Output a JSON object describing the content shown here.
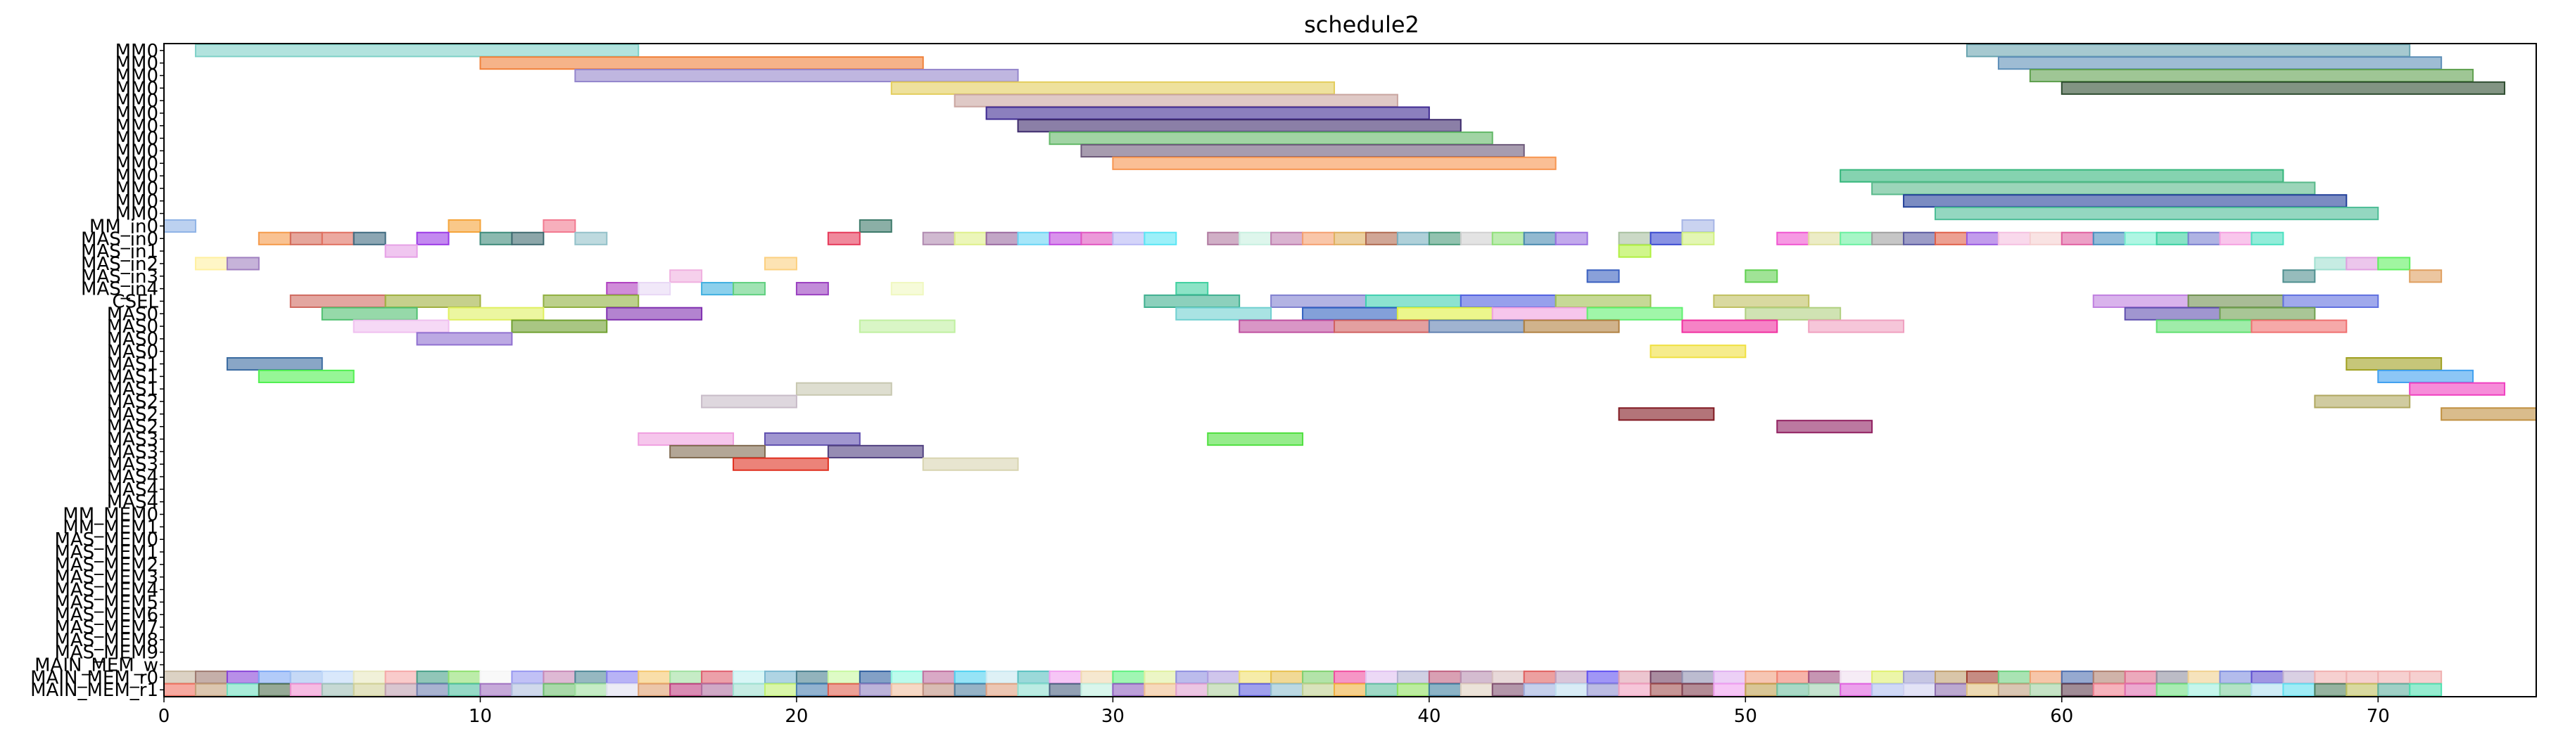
{
  "chart_data": {
    "type": "gantt",
    "title": "schedule2",
    "xlim": [
      0,
      75
    ],
    "x_ticks": [
      0,
      10,
      20,
      30,
      40,
      50,
      60,
      70
    ],
    "rows": [
      "MM0",
      "MM0",
      "MM0",
      "MM0",
      "MM0",
      "MM0",
      "MM0",
      "MM0",
      "MM0",
      "MM0",
      "MM0",
      "MM0",
      "MM0",
      "MM0",
      "MM_in0",
      "MAS_in0",
      "MAS_in1",
      "MAS_in2",
      "MAS_in3",
      "MAS_in4",
      "CSEL",
      "MAS0",
      "MAS0",
      "MAS0",
      "MAS0",
      "MAS1",
      "MAS1",
      "MAS1",
      "MAS2",
      "MAS2",
      "MAS2",
      "MAS3",
      "MAS3",
      "MAS3",
      "MAS4",
      "MAS4",
      "MAS4",
      "MM_MEM0",
      "MM_MEM1",
      "MAS_MEM0",
      "MAS_MEM1",
      "MAS_MEM2",
      "MAS_MEM3",
      "MAS_MEM4",
      "MAS_MEM5",
      "MAS_MEM6",
      "MAS_MEM7",
      "MAS_MEM8",
      "MAS_MEM9",
      "MAIN_MEM_w",
      "MAIN_MEM_r0",
      "MAIN_MEM_r1"
    ],
    "palette": [
      "#7fcfc6",
      "#f28a3c",
      "#8e80c9",
      "#e6cf5e",
      "#c9a6a0",
      "#3b2a8a",
      "#3e2a6e",
      "#6b5b7b",
      "#5fb66b",
      "#6b4f6b",
      "#f7954f",
      "#2fb57a",
      "#52b889",
      "#1f3f9a",
      "#6fa8dc",
      "#e06666",
      "#93c47d",
      "#c27ba0",
      "#b4a7d6",
      "#76a5af",
      "#ffd966",
      "#8e7cc3",
      "#a64d79",
      "#45818e",
      "#d9d2e9",
      "#f9cb9c",
      "#b6d7a8",
      "#ea9999",
      "#a2c4c9",
      "#ffe599"
    ],
    "bars": [
      {
        "row": 0,
        "start": 1,
        "end": 15,
        "color": "#7fd1c8"
      },
      {
        "row": 0,
        "start": 57,
        "end": 71,
        "color": "#6aa5b0"
      },
      {
        "row": 1,
        "start": 10,
        "end": 24,
        "color": "#f0813a"
      },
      {
        "row": 1,
        "start": 58,
        "end": 72,
        "color": "#5e8fb8"
      },
      {
        "row": 2,
        "start": 13,
        "end": 27,
        "color": "#9486cc"
      },
      {
        "row": 2,
        "start": 59,
        "end": 73,
        "color": "#5fa04e"
      },
      {
        "row": 3,
        "start": 23,
        "end": 37,
        "color": "#e3cd5c"
      },
      {
        "row": 3,
        "start": 60,
        "end": 74,
        "color": "#2e4d30"
      },
      {
        "row": 4,
        "start": 25,
        "end": 39,
        "color": "#c9a5a0"
      },
      {
        "row": 5,
        "start": 26,
        "end": 40,
        "color": "#3e2a92"
      },
      {
        "row": 6,
        "start": 27,
        "end": 41,
        "color": "#3d2a6c"
      },
      {
        "row": 7,
        "start": 28,
        "end": 42,
        "color": "#62b867"
      },
      {
        "row": 8,
        "start": 29,
        "end": 43,
        "color": "#6d5a7a"
      },
      {
        "row": 9,
        "start": 30,
        "end": 44,
        "color": "#f7954f"
      },
      {
        "row": 10,
        "start": 53,
        "end": 67,
        "color": "#34b67b"
      },
      {
        "row": 11,
        "start": 54,
        "end": 68,
        "color": "#58b98a"
      },
      {
        "row": 12,
        "start": 55,
        "end": 69,
        "color": "#23409a"
      },
      {
        "row": 13,
        "start": 56,
        "end": 70,
        "color": "#4dbd96"
      },
      {
        "row": 14,
        "start": 0,
        "end": 1,
        "color": "#8fb3e6"
      },
      {
        "row": 14,
        "start": 9,
        "end": 10,
        "color": "#f5a43a"
      },
      {
        "row": 14,
        "start": 12,
        "end": 13,
        "color": "#f27a90"
      },
      {
        "row": 14,
        "start": 22,
        "end": 23,
        "color": "#3d7a6a"
      },
      {
        "row": 14,
        "start": 48,
        "end": 49,
        "color": "#a6b5e6"
      },
      {
        "row": 15,
        "start": 3,
        "end": 4,
        "color": "#f59a4a"
      },
      {
        "row": 15,
        "start": 4,
        "end": 5,
        "color": "#d46a5a"
      },
      {
        "row": 15,
        "start": 5,
        "end": 6,
        "color": "#e07060"
      },
      {
        "row": 15,
        "start": 6,
        "end": 7,
        "color": "#3f6a80"
      },
      {
        "row": 15,
        "start": 8,
        "end": 9,
        "color": "#9b3ae6"
      },
      {
        "row": 15,
        "start": 10,
        "end": 11,
        "color": "#3d8a7a"
      },
      {
        "row": 15,
        "start": 11,
        "end": 12,
        "color": "#3f6a70"
      },
      {
        "row": 15,
        "start": 13,
        "end": 14,
        "color": "#93c1c9"
      },
      {
        "row": 15,
        "start": 21,
        "end": 22,
        "color": "#e63a5a"
      },
      {
        "row": 15,
        "start": 24,
        "end": 25,
        "color": "#b08ab0"
      },
      {
        "row": 15,
        "start": 25,
        "end": 26,
        "color": "#dff08a"
      },
      {
        "row": 15,
        "start": 26,
        "end": 27,
        "color": "#9a6aa0"
      },
      {
        "row": 15,
        "start": 27,
        "end": 28,
        "color": "#6ad5f5"
      },
      {
        "row": 15,
        "start": 28,
        "end": 29,
        "color": "#c04ae0"
      },
      {
        "row": 15,
        "start": 29,
        "end": 30,
        "color": "#e055c0"
      },
      {
        "row": 15,
        "start": 30,
        "end": 31,
        "color": "#b8b8f5"
      },
      {
        "row": 15,
        "start": 31,
        "end": 32,
        "color": "#5ae6f5"
      },
      {
        "row": 15,
        "start": 33,
        "end": 34,
        "color": "#b07aa0"
      },
      {
        "row": 15,
        "start": 34,
        "end": 35,
        "color": "#c8f0e0"
      },
      {
        "row": 15,
        "start": 35,
        "end": 36,
        "color": "#c080b0"
      },
      {
        "row": 15,
        "start": 36,
        "end": 37,
        "color": "#f5a070"
      },
      {
        "row": 15,
        "start": 37,
        "end": 38,
        "color": "#e0b060"
      },
      {
        "row": 15,
        "start": 38,
        "end": 39,
        "color": "#b06a50"
      },
      {
        "row": 15,
        "start": 39,
        "end": 40,
        "color": "#7ab0c0"
      },
      {
        "row": 15,
        "start": 40,
        "end": 41,
        "color": "#4a9a7a"
      },
      {
        "row": 15,
        "start": 41,
        "end": 42,
        "color": "#d0d0d0"
      },
      {
        "row": 15,
        "start": 42,
        "end": 43,
        "color": "#90e07a"
      },
      {
        "row": 15,
        "start": 43,
        "end": 44,
        "color": "#4a8ab0"
      },
      {
        "row": 15,
        "start": 44,
        "end": 45,
        "color": "#9a70e0"
      },
      {
        "row": 15,
        "start": 46,
        "end": 47,
        "color": "#a8c0a0"
      },
      {
        "row": 15,
        "start": 47,
        "end": 48,
        "color": "#3a4ad0"
      },
      {
        "row": 15,
        "start": 48,
        "end": 49,
        "color": "#d0f080"
      },
      {
        "row": 15,
        "start": 51,
        "end": 52,
        "color": "#f055d0"
      },
      {
        "row": 15,
        "start": 52,
        "end": 53,
        "color": "#e0e0a0"
      },
      {
        "row": 15,
        "start": 53,
        "end": 54,
        "color": "#6af0a0"
      },
      {
        "row": 15,
        "start": 54,
        "end": 55,
        "color": "#a0a0a0"
      },
      {
        "row": 15,
        "start": 55,
        "end": 56,
        "color": "#5a5aa0"
      },
      {
        "row": 15,
        "start": 56,
        "end": 57,
        "color": "#e0604a"
      },
      {
        "row": 15,
        "start": 57,
        "end": 58,
        "color": "#9a5ae0"
      },
      {
        "row": 15,
        "start": 58,
        "end": 59,
        "color": "#f5c0e0"
      },
      {
        "row": 15,
        "start": 59,
        "end": 60,
        "color": "#f5d0d0"
      },
      {
        "row": 15,
        "start": 60,
        "end": 61,
        "color": "#e060a0"
      },
      {
        "row": 15,
        "start": 61,
        "end": 62,
        "color": "#4a90c0"
      },
      {
        "row": 15,
        "start": 62,
        "end": 63,
        "color": "#7af0d0"
      },
      {
        "row": 15,
        "start": 63,
        "end": 64,
        "color": "#3ad0a0"
      },
      {
        "row": 15,
        "start": 64,
        "end": 65,
        "color": "#7a80d0"
      },
      {
        "row": 15,
        "start": 65,
        "end": 66,
        "color": "#f5a0e0"
      },
      {
        "row": 15,
        "start": 66,
        "end": 67,
        "color": "#4ae0c0"
      },
      {
        "row": 16,
        "start": 7,
        "end": 8,
        "color": "#e6a0e6"
      },
      {
        "row": 16,
        "start": 46,
        "end": 47,
        "color": "#b0f040"
      },
      {
        "row": 17,
        "start": 1,
        "end": 2,
        "color": "#fff0a0"
      },
      {
        "row": 17,
        "start": 2,
        "end": 3,
        "color": "#a080c0"
      },
      {
        "row": 17,
        "start": 19,
        "end": 20,
        "color": "#fcd080"
      },
      {
        "row": 17,
        "start": 68,
        "end": 69,
        "color": "#a0e0d0"
      },
      {
        "row": 17,
        "start": 69,
        "end": 70,
        "color": "#e0a0e0"
      },
      {
        "row": 17,
        "start": 70,
        "end": 71,
        "color": "#60f060"
      },
      {
        "row": 18,
        "start": 16,
        "end": 17,
        "color": "#f0b0e0"
      },
      {
        "row": 18,
        "start": 45,
        "end": 46,
        "color": "#3a60c0"
      },
      {
        "row": 18,
        "start": 50,
        "end": 51,
        "color": "#60d050"
      },
      {
        "row": 18,
        "start": 67,
        "end": 68,
        "color": "#509090"
      },
      {
        "row": 18,
        "start": 71,
        "end": 72,
        "color": "#e0a060"
      },
      {
        "row": 19,
        "start": 14,
        "end": 15,
        "color": "#b040c0"
      },
      {
        "row": 19,
        "start": 15,
        "end": 16,
        "color": "#e8d8f5"
      },
      {
        "row": 19,
        "start": 17,
        "end": 18,
        "color": "#40b0e0"
      },
      {
        "row": 19,
        "start": 18,
        "end": 19,
        "color": "#60d080"
      },
      {
        "row": 19,
        "start": 20,
        "end": 21,
        "color": "#9a40c0"
      },
      {
        "row": 19,
        "start": 23,
        "end": 24,
        "color": "#f0f8c0"
      },
      {
        "row": 19,
        "start": 32,
        "end": 33,
        "color": "#40d0a0"
      },
      {
        "row": 20,
        "start": 4,
        "end": 7,
        "color": "#d06a60"
      },
      {
        "row": 20,
        "start": 7,
        "end": 10,
        "color": "#a0b040"
      },
      {
        "row": 20,
        "start": 12,
        "end": 15,
        "color": "#90b040"
      },
      {
        "row": 20,
        "start": 31,
        "end": 34,
        "color": "#40b090"
      },
      {
        "row": 20,
        "start": 35,
        "end": 38,
        "color": "#8080d0"
      },
      {
        "row": 20,
        "start": 38,
        "end": 41,
        "color": "#40d0b0"
      },
      {
        "row": 20,
        "start": 41,
        "end": 44,
        "color": "#5060e0"
      },
      {
        "row": 20,
        "start": 44,
        "end": 47,
        "color": "#a0c050"
      },
      {
        "row": 20,
        "start": 49,
        "end": 52,
        "color": "#c0c060"
      },
      {
        "row": 20,
        "start": 61,
        "end": 64,
        "color": "#c080e0"
      },
      {
        "row": 20,
        "start": 64,
        "end": 67,
        "color": "#709050"
      },
      {
        "row": 20,
        "start": 67,
        "end": 70,
        "color": "#6070e0"
      },
      {
        "row": 21,
        "start": 5,
        "end": 8,
        "color": "#50c070"
      },
      {
        "row": 21,
        "start": 9,
        "end": 12,
        "color": "#e0f060"
      },
      {
        "row": 21,
        "start": 14,
        "end": 17,
        "color": "#8030b0"
      },
      {
        "row": 21,
        "start": 32,
        "end": 35,
        "color": "#70d0d0"
      },
      {
        "row": 21,
        "start": 36,
        "end": 39,
        "color": "#3060c0"
      },
      {
        "row": 21,
        "start": 39,
        "end": 42,
        "color": "#e0f040"
      },
      {
        "row": 21,
        "start": 42,
        "end": 45,
        "color": "#f0a0e0"
      },
      {
        "row": 21,
        "start": 45,
        "end": 48,
        "color": "#60f070"
      },
      {
        "row": 21,
        "start": 50,
        "end": 53,
        "color": "#b0d080"
      },
      {
        "row": 21,
        "start": 62,
        "end": 65,
        "color": "#6050b0"
      },
      {
        "row": 21,
        "start": 65,
        "end": 68,
        "color": "#70a050"
      },
      {
        "row": 22,
        "start": 6,
        "end": 9,
        "color": "#f0c0f0"
      },
      {
        "row": 22,
        "start": 11,
        "end": 14,
        "color": "#70a030"
      },
      {
        "row": 22,
        "start": 22,
        "end": 25,
        "color": "#c0f0a0"
      },
      {
        "row": 22,
        "start": 34,
        "end": 37,
        "color": "#c050a0"
      },
      {
        "row": 22,
        "start": 37,
        "end": 40,
        "color": "#d06060"
      },
      {
        "row": 22,
        "start": 40,
        "end": 43,
        "color": "#6080b0"
      },
      {
        "row": 22,
        "start": 43,
        "end": 46,
        "color": "#b08040"
      },
      {
        "row": 22,
        "start": 48,
        "end": 51,
        "color": "#f030a0"
      },
      {
        "row": 22,
        "start": 52,
        "end": 55,
        "color": "#f0a0c0"
      },
      {
        "row": 22,
        "start": 63,
        "end": 66,
        "color": "#60e070"
      },
      {
        "row": 22,
        "start": 66,
        "end": 69,
        "color": "#f07070"
      },
      {
        "row": 23,
        "start": 8,
        "end": 11,
        "color": "#9070d0"
      },
      {
        "row": 24,
        "start": 47,
        "end": 50,
        "color": "#f0e040"
      },
      {
        "row": 25,
        "start": 2,
        "end": 5,
        "color": "#3a6aa0"
      },
      {
        "row": 25,
        "start": 69,
        "end": 72,
        "color": "#a0a020"
      },
      {
        "row": 26,
        "start": 3,
        "end": 6,
        "color": "#50f050"
      },
      {
        "row": 26,
        "start": 70,
        "end": 73,
        "color": "#40a0f0"
      },
      {
        "row": 27,
        "start": 20,
        "end": 23,
        "color": "#c8c8b0"
      },
      {
        "row": 27,
        "start": 71,
        "end": 74,
        "color": "#f040c0"
      },
      {
        "row": 28,
        "start": 17,
        "end": 20,
        "color": "#c8bcc8"
      },
      {
        "row": 28,
        "start": 68,
        "end": 71,
        "color": "#b0a860"
      },
      {
        "row": 29,
        "start": 46,
        "end": 49,
        "color": "#801820"
      },
      {
        "row": 29,
        "start": 72,
        "end": 75,
        "color": "#c09040"
      },
      {
        "row": 30,
        "start": 51,
        "end": 54,
        "color": "#902060"
      },
      {
        "row": 31,
        "start": 15,
        "end": 18,
        "color": "#f0a0e0"
      },
      {
        "row": 31,
        "start": 19,
        "end": 22,
        "color": "#6050b0"
      },
      {
        "row": 31,
        "start": 33,
        "end": 36,
        "color": "#50e040"
      },
      {
        "row": 32,
        "start": 16,
        "end": 19,
        "color": "#806a50"
      },
      {
        "row": 32,
        "start": 21,
        "end": 24,
        "color": "#504080"
      },
      {
        "row": 33,
        "start": 18,
        "end": 21,
        "color": "#e03020"
      },
      {
        "row": 33,
        "start": 24,
        "end": 27,
        "color": "#d8d4b0"
      }
    ],
    "mem_colors_r0": [
      "#c4b49c",
      "#9e7a70",
      "#8845d8",
      "#7ea8f5",
      "#a0c0f0",
      "#c0d8f8",
      "#e8e8c0",
      "#f5a8a8",
      "#48a088",
      "#90e070",
      "#f5f5f5",
      "#9898f0",
      "#c88ab8",
      "#508898",
      "#8880f0",
      "#f5c870",
      "#a0e0a0",
      "#e06070",
      "#c0f0f0",
      "#7ab8d0",
      "#4a8090",
      "#c8f8a0",
      "#3060a0",
      "#90f8e0",
      "#c070a0",
      "#50d0f0",
      "#c8e8f0",
      "#58c0c0",
      "#f0a0f0",
      "#f0d8b0",
      "#60f080",
      "#e0f0a0",
      "#9090e0",
      "#b0a0e0",
      "#f0e070",
      "#e8c050",
      "#80d070",
      "#f050a0",
      "#e0c0f0",
      "#b0b0d0",
      "#c06080",
      "#b890b0",
      "#d8c0c0",
      "#e06060",
      "#c0a0c0",
      "#6050f0",
      "#e0a0b0",
      "#704060",
      "#9090b0",
      "#e0b0f0",
      "#f0a080",
      "#f08070",
      "#a05080",
      "#f0e0f0",
      "#e0f070",
      "#a0a0d0",
      "#c0a070",
      "#a04030",
      "#70d080",
      "#f0a070",
      "#5070b0",
      "#b08070",
      "#e07090",
      "#9090a0",
      "#f0d090",
      "#8090e0",
      "#6050d0",
      "#c0b0d0",
      "#f0b0b0",
      "#f0b0b0",
      "#f0b0b0",
      "#f0b0b0"
    ],
    "mem_colors_r1": [
      "#f07060",
      "#c4a07a",
      "#70e0c0",
      "#507050",
      "#f090d0",
      "#a0c0b8",
      "#d0d098",
      "#c0a0b0",
      "#7080b0",
      "#50c0a0",
      "#a070c0",
      "#b0c0e0",
      "#70c070",
      "#a0e0a0",
      "#e0e0f0",
      "#e0a070",
      "#c04080",
      "#b070a0",
      "#a0e0d0",
      "#c0f070",
      "#4a80b0",
      "#e06050",
      "#9080c0",
      "#f0c0a0",
      "#c09080",
      "#5080a0",
      "#e0a080",
      "#90e0d0",
      "#4a6080",
      "#c0f0e0",
      "#9060c0",
      "#f0c090",
      "#e0a0d0",
      "#b0d0a0",
      "#6060e0",
      "#90c0d0",
      "#c0d090",
      "#f0b040",
      "#60c0a0",
      "#90e060",
      "#4080a0",
      "#e0d0c0",
      "#805070",
      "#a0b0e0",
      "#c0e0f0",
      "#9090d0",
      "#f0a0c0",
      "#a05050",
      "#804050",
      "#f0a0f0",
      "#c0a050",
      "#70c0a0",
      "#a0d0b0",
      "#e060e0",
      "#b0c0f0",
      "#d0d0f0",
      "#9070b0",
      "#e0c080",
      "#c0a080",
      "#a0d0a0",
      "#604050",
      "#f08090",
      "#e070b0",
      "#70e080",
      "#a0f0e0",
      "#80d0a0",
      "#b0e0f0",
      "#60e0f0",
      "#508060",
      "#c0c060",
      "#60b0a0",
      "#50e0b0"
    ]
  }
}
